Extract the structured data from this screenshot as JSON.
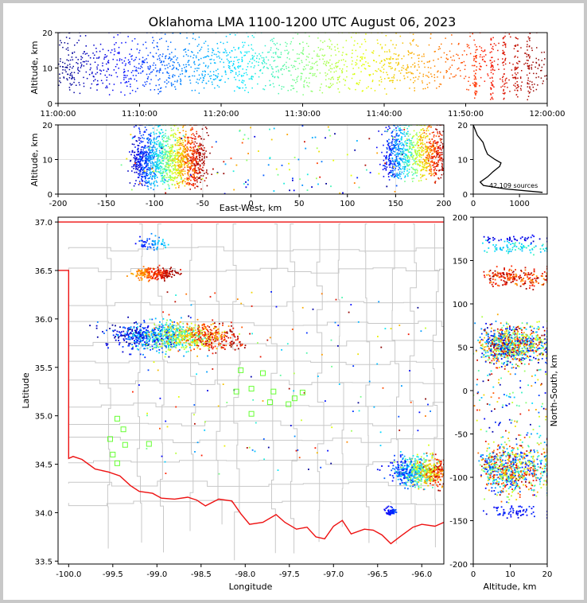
{
  "chart_data": {
    "type": "scatter",
    "title": "Oklahoma LMA 1100-1200 UTC August 06, 2023",
    "colormap": [
      "#00007f",
      "#0000ff",
      "#0080ff",
      "#00e5ff",
      "#7fff7f",
      "#e5ff00",
      "#ff9900",
      "#ff1a00",
      "#7f0000"
    ],
    "panels": {
      "time_altitude": {
        "ylabel": "Altitude, km",
        "xticks": [
          "11:00:00",
          "11:10:00",
          "11:20:00",
          "11:30:00",
          "11:40:00",
          "11:50:00",
          "12:00:00"
        ],
        "yticks": [
          "0",
          "10",
          "20"
        ],
        "xlim_minutes": [
          0,
          60
        ],
        "ylim": [
          0,
          20
        ]
      },
      "ew_altitude": {
        "xlabel": "East-West, km",
        "ylabel": "Altitude, km",
        "xticks": [
          "-200",
          "-150",
          "-100",
          "-50",
          "0",
          "50",
          "100",
          "150",
          "200"
        ],
        "yticks": [
          "0",
          "10",
          "20"
        ],
        "xlim": [
          -200,
          200
        ],
        "ylim": [
          0,
          20
        ],
        "clusters": [
          {
            "x_range": [
              -125,
              -50
            ],
            "color_order": "early-to-late"
          },
          {
            "x_range": [
              140,
              200
            ],
            "color_order": "early-to-late"
          }
        ]
      },
      "histogram": {
        "xticks": [
          "0",
          "1000"
        ],
        "yticks": [
          "0",
          "10",
          "20"
        ],
        "xlim": [
          0,
          1600
        ],
        "ylim": [
          0,
          20
        ],
        "annotation": "42,109 sources",
        "profile": [
          {
            "alt": 0.5,
            "count": 1500
          },
          {
            "alt": 1.5,
            "count": 700
          },
          {
            "alt": 2.5,
            "count": 220
          },
          {
            "alt": 3.5,
            "count": 150
          },
          {
            "alt": 5,
            "count": 310
          },
          {
            "alt": 6.5,
            "count": 430
          },
          {
            "alt": 8,
            "count": 570
          },
          {
            "alt": 9,
            "count": 600
          },
          {
            "alt": 10,
            "count": 470
          },
          {
            "alt": 11.5,
            "count": 310
          },
          {
            "alt": 13,
            "count": 260
          },
          {
            "alt": 15,
            "count": 210
          },
          {
            "alt": 17,
            "count": 90
          },
          {
            "alt": 19,
            "count": 30
          },
          {
            "alt": 20,
            "count": 0
          }
        ]
      },
      "map": {
        "xlabel": "Longitude",
        "ylabel": "Latitude",
        "xticks": [
          "-100.0",
          "-99.5",
          "-99.0",
          "-98.5",
          "-98.0",
          "-97.5",
          "-97.0",
          "-96.5",
          "-96.0"
        ],
        "yticks": [
          "33.5",
          "34.0",
          "34.5",
          "35.0",
          "35.5",
          "36.0",
          "36.5",
          "37.0"
        ],
        "xlim": [
          -100.12,
          -95.75
        ],
        "ylim": [
          33.47,
          37.05
        ],
        "clusters": [
          {
            "lon": -98.8,
            "lat": 35.8,
            "note": "main storm"
          },
          {
            "lon": -99.0,
            "lat": 36.47,
            "note": "northern cell"
          },
          {
            "lon": -99.05,
            "lat": 36.78,
            "note": "far north cell"
          },
          {
            "lon": -96.0,
            "lat": 34.45,
            "note": "southeast storm"
          },
          {
            "lon": -96.35,
            "lat": 34.02,
            "note": "small southeast cell"
          }
        ],
        "stations": [
          [
            -99.45,
            34.97
          ],
          [
            -99.38,
            34.86
          ],
          [
            -99.53,
            34.76
          ],
          [
            -99.36,
            34.7
          ],
          [
            -99.09,
            34.71
          ],
          [
            -99.5,
            34.6
          ],
          [
            -99.45,
            34.51
          ],
          [
            -98.05,
            35.47
          ],
          [
            -97.8,
            35.44
          ],
          [
            -97.93,
            35.28
          ],
          [
            -98.1,
            35.25
          ],
          [
            -97.68,
            35.25
          ],
          [
            -97.35,
            35.24
          ],
          [
            -97.44,
            35.18
          ],
          [
            -97.72,
            35.14
          ],
          [
            -97.51,
            35.12
          ],
          [
            -97.93,
            35.02
          ]
        ]
      },
      "ns_altitude": {
        "xlabel": "Altitude, km",
        "ylabel": "North-South, km",
        "xticks": [
          "0",
          "10",
          "20"
        ],
        "yticks": [
          "-200",
          "-150",
          "-100",
          "-50",
          "0",
          "50",
          "100",
          "150",
          "200"
        ],
        "xlim": [
          0,
          20
        ],
        "ylim": [
          -200,
          200
        ]
      }
    }
  }
}
